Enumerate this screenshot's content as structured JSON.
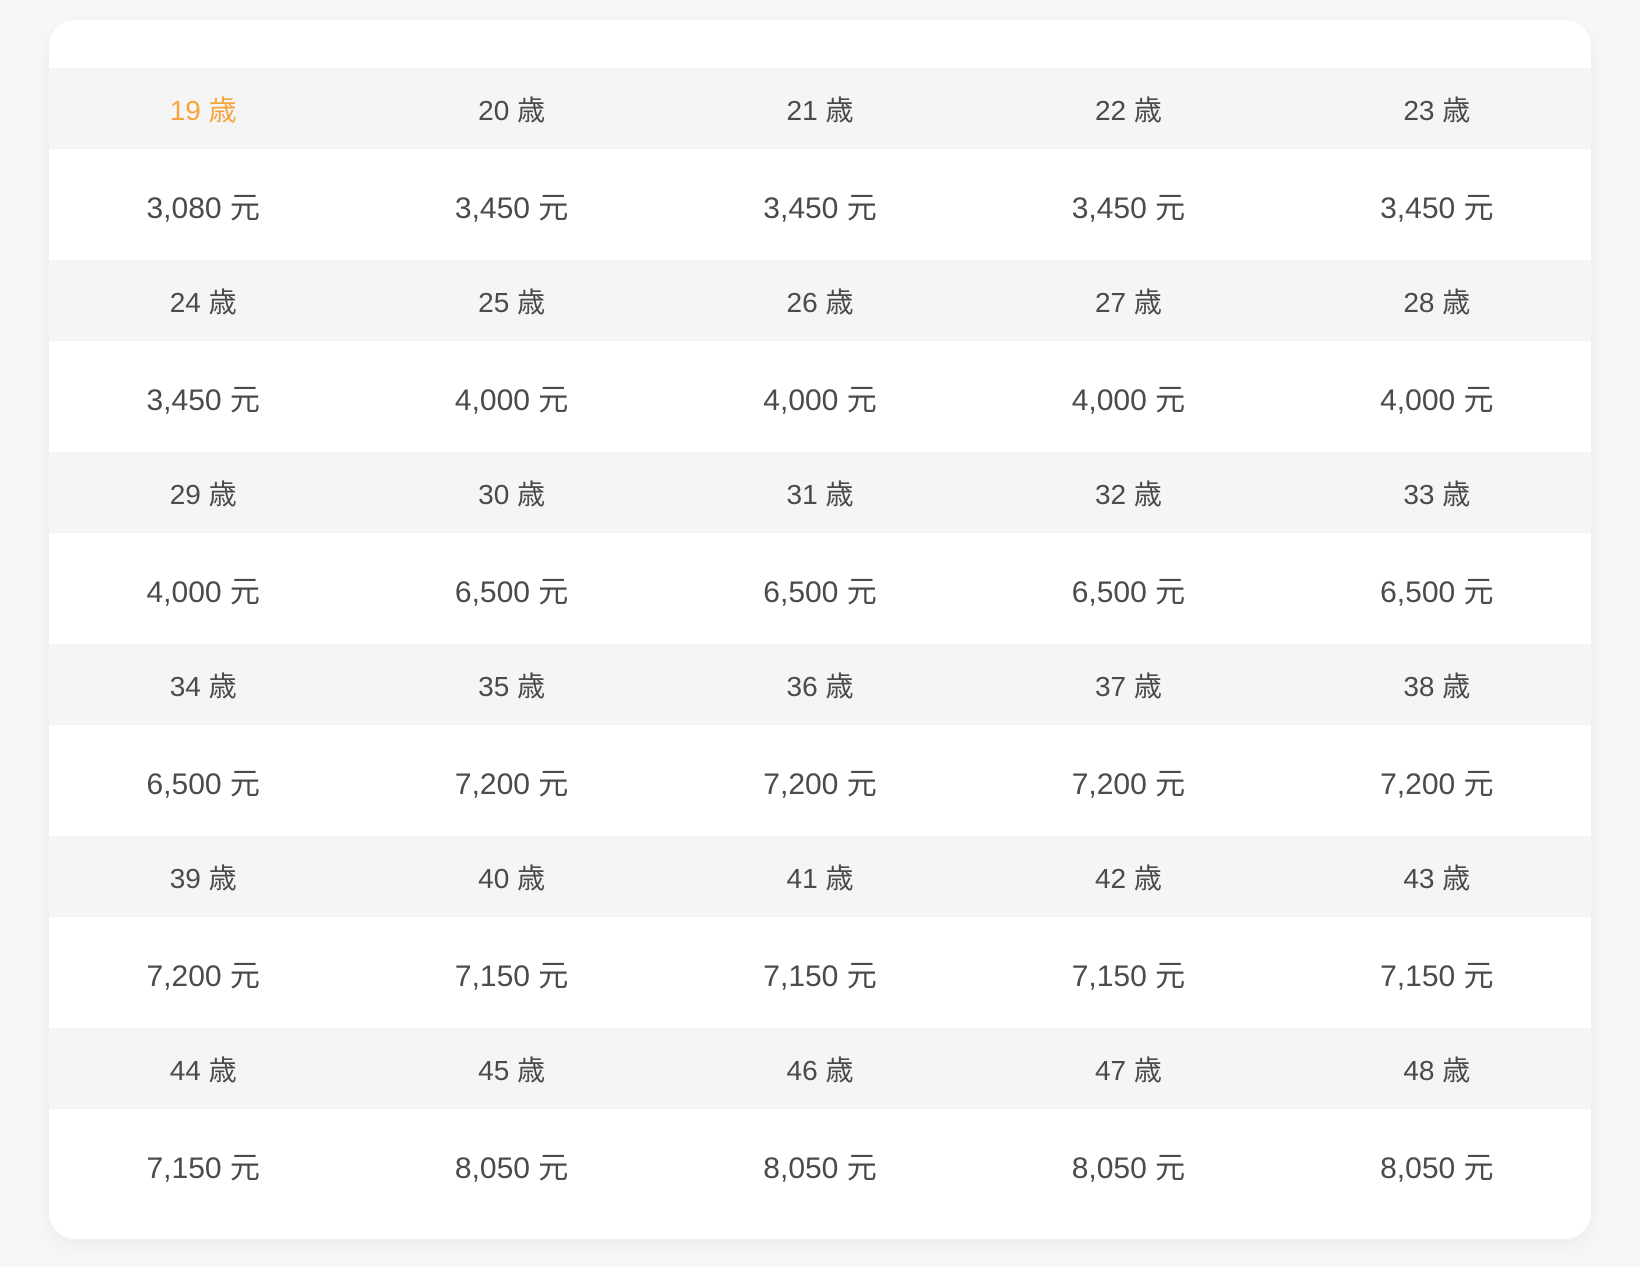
{
  "colors": {
    "page_background": "#f7f7f8",
    "card_background": "#ffffff",
    "age_row_background": "#f5f5f6",
    "text": "#4a4a4f",
    "selected_accent": "#f7a43d"
  },
  "table": {
    "age_unit": "歳",
    "price_unit": "元",
    "selected": {
      "row": 0,
      "col": 0,
      "label": "19 歳"
    },
    "rows": [
      {
        "type": "age",
        "cells": [
          "19 歳",
          "20 歳",
          "21 歳",
          "22 歳",
          "23 歳"
        ]
      },
      {
        "type": "price",
        "cells": [
          "3,080 元",
          "3,450 元",
          "3,450 元",
          "3,450 元",
          "3,450 元"
        ]
      },
      {
        "type": "age",
        "cells": [
          "24 歳",
          "25 歳",
          "26 歳",
          "27 歳",
          "28 歳"
        ]
      },
      {
        "type": "price",
        "cells": [
          "3,450 元",
          "4,000 元",
          "4,000 元",
          "4,000 元",
          "4,000 元"
        ]
      },
      {
        "type": "age",
        "cells": [
          "29 歳",
          "30 歳",
          "31 歳",
          "32 歳",
          "33 歳"
        ]
      },
      {
        "type": "price",
        "cells": [
          "4,000 元",
          "6,500 元",
          "6,500 元",
          "6,500 元",
          "6,500 元"
        ]
      },
      {
        "type": "age",
        "cells": [
          "34 歳",
          "35 歳",
          "36 歳",
          "37 歳",
          "38 歳"
        ]
      },
      {
        "type": "price",
        "cells": [
          "6,500 元",
          "7,200 元",
          "7,200 元",
          "7,200 元",
          "7,200 元"
        ]
      },
      {
        "type": "age",
        "cells": [
          "39 歳",
          "40 歳",
          "41 歳",
          "42 歳",
          "43 歳"
        ]
      },
      {
        "type": "price",
        "cells": [
          "7,200 元",
          "7,150 元",
          "7,150 元",
          "7,150 元",
          "7,150 元"
        ]
      },
      {
        "type": "age",
        "cells": [
          "44 歳",
          "45 歳",
          "46 歳",
          "47 歳",
          "48 歳"
        ]
      },
      {
        "type": "price",
        "cells": [
          "7,150 元",
          "8,050 元",
          "8,050 元",
          "8,050 元",
          "8,050 元"
        ]
      }
    ]
  }
}
